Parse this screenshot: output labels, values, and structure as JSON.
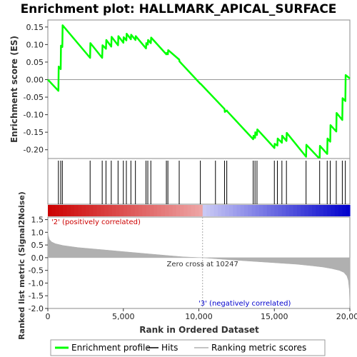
{
  "chart_data": {
    "type": "line",
    "title": "Enrichment plot: HALLMARK_APICAL_SURFACE",
    "panels": {
      "enrichment": {
        "ylabel": "Enrichment score (ES)",
        "ylim": [
          -0.225,
          0.17
        ],
        "yticks": [
          "0.15",
          "0.10",
          "0.05",
          "0.00",
          "-0.05",
          "-0.10",
          "-0.15",
          "-0.20"
        ],
        "ytick_values": [
          0.15,
          0.1,
          0.05,
          0.0,
          -0.05,
          -0.1,
          -0.15,
          -0.2
        ],
        "series": [
          {
            "name": "Enrichment profile",
            "color": "#00ff00",
            "x": [
              0,
              700,
              720,
              850,
              870,
              960,
              980,
              2800,
              2820,
              3600,
              3620,
              3850,
              3870,
              4200,
              4220,
              4650,
              4670,
              5000,
              5020,
              5200,
              5220,
              5500,
              5520,
              5800,
              5820,
              6500,
              6520,
              6620,
              6640,
              6820,
              6840,
              7850,
              7870,
              7950,
              7970,
              8700,
              8720,
              10100,
              10120,
              11700,
              11720,
              11850,
              11870,
              13600,
              13620,
              13720,
              13740,
              13850,
              13870,
              15000,
              15020,
              15200,
              15220,
              15500,
              15520,
              15800,
              15820,
              17100,
              17120,
              18000,
              18020,
              18500,
              18520,
              18700,
              18720,
              19100,
              19120,
              19500,
              19520,
              19700,
              19720,
              20000
            ],
            "y": [
              0.0,
              -0.032,
              0.037,
              0.03,
              0.097,
              0.093,
              0.155,
              0.062,
              0.104,
              0.062,
              0.098,
              0.088,
              0.113,
              0.094,
              0.122,
              0.098,
              0.124,
              0.105,
              0.121,
              0.112,
              0.131,
              0.115,
              0.128,
              0.113,
              0.124,
              0.089,
              0.104,
              0.1,
              0.113,
              0.104,
              0.12,
              0.072,
              0.076,
              0.072,
              0.084,
              0.057,
              0.052,
              -0.012,
              -0.012,
              -0.084,
              -0.092,
              -0.088,
              -0.09,
              -0.17,
              -0.16,
              -0.166,
              -0.15,
              -0.158,
              -0.142,
              -0.195,
              -0.183,
              -0.188,
              -0.168,
              -0.18,
              -0.16,
              -0.175,
              -0.152,
              -0.22,
              -0.186,
              -0.226,
              -0.189,
              -0.212,
              -0.168,
              -0.177,
              -0.13,
              -0.148,
              -0.095,
              -0.115,
              -0.053,
              -0.061,
              0.013,
              0.003
            ]
          }
        ],
        "hits": [
          700,
          850,
          960,
          2800,
          3600,
          3850,
          4200,
          4650,
          5000,
          5200,
          5500,
          5800,
          6500,
          6620,
          6820,
          7850,
          7950,
          8700,
          10100,
          11100,
          11700,
          11850,
          13600,
          13720,
          13850,
          15000,
          15200,
          15500,
          15800,
          17100,
          18000,
          18500,
          18700,
          19100,
          19500,
          19700
        ]
      },
      "ranked_metric": {
        "ylabel": "Ranked list metric (Signal2Noise)",
        "ylim": [
          -2.0,
          1.6
        ],
        "yticks": [
          "1.5",
          "1.0",
          "0.5",
          "0.0",
          "-0.5",
          "-1.0",
          "-1.5",
          "-2.0"
        ],
        "ytick_values": [
          1.5,
          1.0,
          0.5,
          0.0,
          -0.5,
          -1.0,
          -1.5,
          -2.0
        ],
        "x": [
          0,
          30,
          100,
          250,
          500,
          1000,
          2000,
          3500,
          5000,
          6500,
          8000,
          9000,
          10247,
          11500,
          13000,
          15000,
          16500,
          17500,
          18200,
          18800,
          19300,
          19600,
          19800,
          19900,
          19960,
          20000
        ],
        "values": [
          1.08,
          0.88,
          0.72,
          0.62,
          0.55,
          0.48,
          0.4,
          0.32,
          0.24,
          0.16,
          0.08,
          0.03,
          0.0,
          -0.06,
          -0.12,
          -0.2,
          -0.26,
          -0.32,
          -0.37,
          -0.43,
          -0.5,
          -0.58,
          -0.72,
          -0.9,
          -1.25,
          -1.92
        ],
        "color": "#b0b0b0",
        "zero_cross_label": "Zero cross at 10247",
        "zero_cross": 10247,
        "pos_label": "'2' (positively correlated)",
        "neg_label": "'3' (negatively correlated)",
        "pos_color": "#cc0000",
        "neg_color": "#0000cc"
      }
    },
    "xlabel": "Rank in Ordered Dataset",
    "xlim": [
      0,
      20000
    ],
    "xticks": [
      "0",
      "5,000",
      "10,000",
      "15,000",
      "20,000"
    ],
    "xtick_values": [
      0,
      5000,
      10000,
      15000,
      20000
    ],
    "legend": {
      "placement": "bottom",
      "items": [
        {
          "label": "Enrichment profile",
          "color": "#00ff00"
        },
        {
          "label": "Hits",
          "color": "#000000"
        },
        {
          "label": "Ranking metric scores",
          "color": "#b0b0b0"
        }
      ]
    }
  }
}
